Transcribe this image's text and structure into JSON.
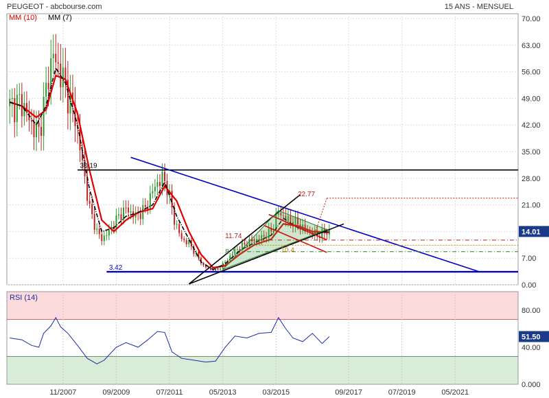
{
  "header": {
    "title": "PEUGEOT - abcbourse.com",
    "period": "15 ANS - MENSUEL",
    "legend": [
      {
        "label": "MM (10)",
        "color": "#e00000"
      },
      {
        "label": "MM (7)",
        "color": "#000000"
      }
    ]
  },
  "colors": {
    "candle_up": "#2e9a2e",
    "candle_down": "#c02020",
    "ma10": "#e00000",
    "ma7": "#000000",
    "trend_blue": "#0000c8",
    "last_price_bg": "#1a3a8a",
    "rsi_over": "#fadadb",
    "rsi_under": "#d8ecd8"
  },
  "chart_data": [
    {
      "type": "candlestick",
      "ylim": [
        0,
        70
      ],
      "yticks": [
        "70.00",
        "63.00",
        "56.00",
        "49.00",
        "42.00",
        "35.00",
        "28.00",
        "21.00",
        "14.00",
        "7.00",
        "0.00"
      ],
      "xticks": [
        "11/2007",
        "09/2009",
        "07/2011",
        "05/2013",
        "03/2015",
        "09/2017",
        "07/2019",
        "05/2021"
      ],
      "last_value": "14.01",
      "annotations": [
        {
          "text": "30.19",
          "value": 30.19
        },
        {
          "text": "3.42",
          "value": 3.42
        },
        {
          "text": "22.77",
          "value": 22.77
        },
        {
          "text": "11.74",
          "value": 11.74
        },
        {
          "text": "8.7",
          "value": 8.7
        },
        {
          "text": "10.4",
          "value": 10.4
        }
      ],
      "price_path": [
        [
          "2006-01",
          47
        ],
        [
          "2006-06",
          48
        ],
        [
          "2006-10",
          42
        ],
        [
          "2007-01",
          40
        ],
        [
          "2007-03",
          47
        ],
        [
          "2007-05",
          55
        ],
        [
          "2007-07",
          61
        ],
        [
          "2007-08",
          58
        ],
        [
          "2007-10",
          56
        ],
        [
          "2008-01",
          50
        ],
        [
          "2008-04",
          44
        ],
        [
          "2008-07",
          32
        ],
        [
          "2008-10",
          20
        ],
        [
          "2009-01",
          14
        ],
        [
          "2009-03",
          12
        ],
        [
          "2009-06",
          14
        ],
        [
          "2009-10",
          18
        ],
        [
          "2010-01",
          20
        ],
        [
          "2010-05",
          18
        ],
        [
          "2010-09",
          20
        ],
        [
          "2011-01",
          26
        ],
        [
          "2011-04",
          28
        ],
        [
          "2011-06",
          26
        ],
        [
          "2011-09",
          17
        ],
        [
          "2011-12",
          12
        ],
        [
          "2012-03",
          11
        ],
        [
          "2012-06",
          8
        ],
        [
          "2012-09",
          5
        ],
        [
          "2012-12",
          4
        ],
        [
          "2013-03",
          4
        ],
        [
          "2013-06",
          6
        ],
        [
          "2013-10",
          9
        ],
        [
          "2014-03",
          11
        ],
        [
          "2014-08",
          12
        ],
        [
          "2015-01",
          14
        ],
        [
          "2015-04",
          19
        ],
        [
          "2015-08",
          17
        ],
        [
          "2015-12",
          16
        ],
        [
          "2016-04",
          14
        ],
        [
          "2016-08",
          13
        ],
        [
          "2016-12",
          14
        ],
        [
          "2017-01",
          14.01
        ]
      ],
      "ma10": [
        [
          "2006-01",
          48
        ],
        [
          "2006-06",
          47
        ],
        [
          "2006-12",
          44
        ],
        [
          "2007-04",
          46
        ],
        [
          "2007-08",
          55
        ],
        [
          "2007-12",
          54
        ],
        [
          "2008-05",
          45
        ],
        [
          "2008-10",
          30
        ],
        [
          "2009-03",
          17
        ],
        [
          "2009-08",
          14
        ],
        [
          "2010-01",
          17
        ],
        [
          "2010-06",
          19
        ],
        [
          "2010-12",
          20
        ],
        [
          "2011-05",
          26
        ],
        [
          "2011-10",
          22
        ],
        [
          "2012-03",
          14
        ],
        [
          "2012-08",
          8
        ],
        [
          "2013-01",
          4.5
        ],
        [
          "2013-06",
          5
        ],
        [
          "2013-12",
          8
        ],
        [
          "2014-06",
          10.5
        ],
        [
          "2015-01",
          12
        ],
        [
          "2015-06",
          16
        ],
        [
          "2015-12",
          15.5
        ],
        [
          "2016-06",
          14
        ],
        [
          "2017-01",
          13.8
        ]
      ],
      "ma7": [
        [
          "2006-01",
          48
        ],
        [
          "2006-06",
          47
        ],
        [
          "2006-12",
          42
        ],
        [
          "2007-04",
          47
        ],
        [
          "2007-08",
          57
        ],
        [
          "2007-12",
          53
        ],
        [
          "2008-05",
          42
        ],
        [
          "2008-10",
          25
        ],
        [
          "2009-03",
          14
        ],
        [
          "2009-08",
          15
        ],
        [
          "2010-01",
          18
        ],
        [
          "2010-06",
          19
        ],
        [
          "2010-12",
          21
        ],
        [
          "2011-05",
          27
        ],
        [
          "2011-10",
          18
        ],
        [
          "2012-03",
          12
        ],
        [
          "2012-08",
          6
        ],
        [
          "2013-01",
          4
        ],
        [
          "2013-06",
          5.5
        ],
        [
          "2013-12",
          9
        ],
        [
          "2014-06",
          11
        ],
        [
          "2015-01",
          13
        ],
        [
          "2015-06",
          17.5
        ],
        [
          "2015-12",
          15
        ],
        [
          "2016-06",
          13.5
        ],
        [
          "2017-01",
          13.9
        ]
      ]
    },
    {
      "type": "line",
      "title": "RSI (14)",
      "ylim": [
        0,
        100
      ],
      "yticks": [
        "80.00",
        "40.00",
        "0.000"
      ],
      "bands": {
        "over": 70,
        "under": 30
      },
      "last_value": "51.50",
      "values": [
        [
          "2006-01",
          50
        ],
        [
          "2006-06",
          48
        ],
        [
          "2006-10",
          42
        ],
        [
          "2007-01",
          40
        ],
        [
          "2007-03",
          55
        ],
        [
          "2007-06",
          63
        ],
        [
          "2007-08",
          72
        ],
        [
          "2007-10",
          62
        ],
        [
          "2008-01",
          55
        ],
        [
          "2008-05",
          42
        ],
        [
          "2008-09",
          28
        ],
        [
          "2009-01",
          22
        ],
        [
          "2009-04",
          26
        ],
        [
          "2009-09",
          40
        ],
        [
          "2010-01",
          45
        ],
        [
          "2010-06",
          40
        ],
        [
          "2010-10",
          48
        ],
        [
          "2011-02",
          57
        ],
        [
          "2011-05",
          56
        ],
        [
          "2011-08",
          35
        ],
        [
          "2011-12",
          28
        ],
        [
          "2012-05",
          26
        ],
        [
          "2012-10",
          24
        ],
        [
          "2013-02",
          25
        ],
        [
          "2013-06",
          40
        ],
        [
          "2013-10",
          52
        ],
        [
          "2014-03",
          50
        ],
        [
          "2014-08",
          55
        ],
        [
          "2015-01",
          56
        ],
        [
          "2015-04",
          72
        ],
        [
          "2015-07",
          60
        ],
        [
          "2015-10",
          50
        ],
        [
          "2016-02",
          46
        ],
        [
          "2016-06",
          55
        ],
        [
          "2016-10",
          44
        ],
        [
          "2017-01",
          51.5
        ]
      ]
    }
  ]
}
